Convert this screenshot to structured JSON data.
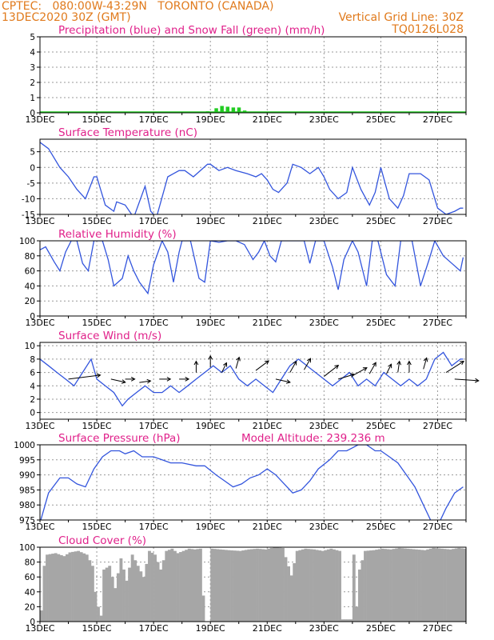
{
  "header": {
    "line1": "CPTEC:   080:00W-43:29N   TORONTO (CANADA)",
    "line2": "13DEC2020 30Z (GMT)",
    "right1": "Vertical Grid Line: 30Z",
    "right2": "TQ0126L028"
  },
  "x_labels": [
    "13DEC",
    "15DEC",
    "17DEC",
    "19DEC",
    "21DEC",
    "23DEC",
    "25DEC",
    "27DEC"
  ],
  "colors": {
    "line": "#3355dd",
    "snow": "#22cc22",
    "cloud": "#a6a6a6",
    "header": "#e07a1c",
    "title": "#e0208a"
  },
  "chart_data": [
    {
      "type": "bar",
      "title": "Precipitation (blue) and Snow Fall (green) (mm/h)",
      "ylim": [
        0,
        5
      ],
      "yticks": [
        0,
        1,
        2,
        3,
        4,
        5
      ],
      "series": [
        {
          "name": "Precipitation",
          "x": [
            26.8
          ],
          "values": [
            0.1
          ]
        },
        {
          "name": "Snow Fall",
          "x": [
            13.1,
            13.4,
            14.2,
            15.2,
            17.4,
            18.9,
            19.2,
            19.4,
            19.6,
            19.8,
            20.0,
            20.2,
            20.4,
            20.8,
            21.2,
            21.8,
            22.3
          ],
          "values": [
            0.05,
            0.03,
            0.05,
            0.05,
            0.05,
            0.1,
            0.3,
            0.45,
            0.4,
            0.35,
            0.35,
            0.15,
            0.05,
            0.05,
            0.05,
            0.08,
            0.05
          ]
        }
      ]
    },
    {
      "type": "line",
      "title": "Surface Temperature (nC)",
      "ylim": [
        -15,
        9
      ],
      "yticks": [
        -15,
        -10,
        -5,
        0,
        5
      ],
      "x": [
        13.0,
        13.3,
        13.7,
        14.0,
        14.3,
        14.6,
        14.9,
        15.0,
        15.3,
        15.6,
        15.7,
        16.0,
        16.3,
        16.7,
        16.9,
        17.1,
        17.5,
        17.7,
        17.9,
        18.1,
        18.4,
        18.9,
        19.0,
        19.3,
        19.6,
        19.9,
        20.3,
        20.6,
        20.8,
        21.0,
        21.2,
        21.4,
        21.7,
        21.9,
        22.2,
        22.5,
        22.8,
        23.0,
        23.2,
        23.5,
        23.8,
        24.0,
        24.3,
        24.6,
        24.8,
        25.0,
        25.3,
        25.6,
        25.8,
        26.0,
        26.4,
        26.7,
        27.0,
        27.3,
        27.6,
        27.8,
        27.9
      ],
      "values": [
        8,
        6,
        0,
        -3,
        -7,
        -10,
        -3,
        -3,
        -12,
        -14,
        -11,
        -12,
        -16,
        -6,
        -14,
        -16,
        -3,
        -2,
        -1,
        -1,
        -3,
        1,
        1,
        -1,
        0,
        -1,
        -2,
        -3,
        -2,
        -4,
        -7,
        -8,
        -5,
        1,
        0,
        -2,
        0,
        -3,
        -7,
        -10,
        -8,
        0,
        -7,
        -12,
        -8,
        0,
        -10,
        -13,
        -9,
        -2,
        -2,
        -4,
        -13,
        -15,
        -14,
        -13,
        -13
      ]
    },
    {
      "type": "line",
      "title": "Relative Humidity (%)",
      "ylim": [
        0,
        100
      ],
      "yticks": [
        0,
        20,
        40,
        60,
        80,
        100
      ],
      "x": [
        13.0,
        13.2,
        13.5,
        13.7,
        13.9,
        14.1,
        14.3,
        14.5,
        14.7,
        14.9,
        15.0,
        15.2,
        15.4,
        15.6,
        15.9,
        16.1,
        16.3,
        16.5,
        16.8,
        17.0,
        17.3,
        17.5,
        17.7,
        17.9,
        18.0,
        18.3,
        18.6,
        18.8,
        19.0,
        19.3,
        19.6,
        19.9,
        20.2,
        20.5,
        20.7,
        20.9,
        21.1,
        21.3,
        21.5,
        21.8,
        22.0,
        22.3,
        22.5,
        22.7,
        23.0,
        23.3,
        23.5,
        23.7,
        24.0,
        24.2,
        24.5,
        24.7,
        24.9,
        25.2,
        25.5,
        25.7,
        25.9,
        26.1,
        26.4,
        26.7,
        26.9,
        27.2,
        27.5,
        27.8,
        27.9
      ],
      "values": [
        88,
        92,
        72,
        60,
        85,
        100,
        100,
        70,
        60,
        100,
        100,
        100,
        75,
        40,
        50,
        80,
        60,
        45,
        30,
        68,
        100,
        85,
        45,
        85,
        100,
        100,
        50,
        45,
        100,
        98,
        100,
        100,
        95,
        75,
        85,
        100,
        80,
        72,
        100,
        100,
        100,
        100,
        70,
        100,
        100,
        65,
        35,
        75,
        100,
        85,
        40,
        100,
        100,
        55,
        40,
        100,
        100,
        100,
        40,
        75,
        100,
        80,
        70,
        60,
        78
      ]
    },
    {
      "type": "line",
      "title": "Surface Wind (m/s)",
      "ylim": [
        -1,
        10.5
      ],
      "yticks": [
        0,
        2,
        4,
        6,
        8,
        10
      ],
      "x": [
        13.0,
        13.3,
        13.6,
        13.9,
        14.2,
        14.5,
        14.8,
        15.0,
        15.3,
        15.6,
        15.9,
        16.1,
        16.4,
        16.7,
        17.0,
        17.3,
        17.6,
        17.9,
        18.2,
        18.5,
        18.8,
        19.1,
        19.4,
        19.7,
        20.0,
        20.3,
        20.6,
        20.9,
        21.2,
        21.5,
        21.8,
        22.1,
        22.4,
        22.7,
        23.0,
        23.3,
        23.6,
        23.9,
        24.2,
        24.5,
        24.8,
        25.1,
        25.4,
        25.7,
        26.0,
        26.3,
        26.6,
        26.9,
        27.2,
        27.5,
        27.8,
        27.9
      ],
      "values": [
        8,
        7,
        6,
        5,
        4,
        6,
        8,
        5,
        4,
        3,
        1,
        2,
        3,
        4,
        3,
        3,
        4,
        3,
        4,
        5,
        6,
        7,
        6,
        7,
        5,
        4,
        5,
        4,
        3,
        5,
        7,
        8,
        7,
        6,
        5,
        4,
        5,
        6,
        4,
        5,
        4,
        6,
        5,
        4,
        5,
        4,
        5,
        8,
        9,
        7,
        8,
        8
      ]
    },
    {
      "type": "line",
      "title": "Surface Pressure (hPa)",
      "annotation": "Model Altitude: 239.236  m",
      "ylim": [
        975,
        1000
      ],
      "yticks": [
        975,
        980,
        985,
        990,
        995,
        1000
      ],
      "x": [
        13.0,
        13.3,
        13.7,
        14.0,
        14.3,
        14.6,
        14.9,
        15.2,
        15.5,
        15.8,
        16.0,
        16.3,
        16.6,
        17.0,
        17.3,
        17.6,
        18.0,
        18.5,
        18.8,
        19.2,
        19.5,
        19.8,
        20.1,
        20.4,
        20.7,
        21.0,
        21.3,
        21.6,
        21.9,
        22.2,
        22.5,
        22.8,
        23.2,
        23.5,
        23.8,
        24.0,
        24.2,
        24.5,
        24.8,
        25.0,
        25.3,
        25.6,
        25.9,
        26.2,
        26.5,
        26.8,
        27.0,
        27.3,
        27.6,
        27.9
      ],
      "values": [
        974,
        984,
        989,
        989,
        987,
        986,
        992,
        996,
        998,
        998,
        997,
        998,
        996,
        996,
        995,
        994,
        994,
        993,
        993,
        990,
        988,
        986,
        987,
        989,
        990,
        992,
        990,
        987,
        984,
        985,
        988,
        992,
        995,
        998,
        998,
        999,
        1000,
        1000,
        998,
        998,
        996,
        994,
        990,
        986,
        980,
        974,
        973,
        979,
        984,
        986
      ]
    },
    {
      "type": "bar",
      "title": "Cloud Cover (%)",
      "ylim": [
        0,
        100
      ],
      "yticks": [
        0,
        20,
        40,
        60,
        80,
        100
      ],
      "x": [
        13.0,
        13.1,
        13.2,
        13.5,
        13.8,
        14.0,
        14.3,
        14.6,
        14.8,
        14.9,
        15.0,
        15.1,
        15.2,
        15.4,
        15.6,
        15.8,
        16.0,
        16.2,
        16.4,
        16.6,
        16.8,
        17.0,
        17.2,
        17.4,
        17.6,
        17.8,
        18.0,
        18.2,
        18.4,
        18.6,
        18.7,
        18.8,
        18.9,
        19.0,
        19.3,
        19.6,
        20.0,
        20.3,
        20.6,
        20.9,
        21.2,
        21.5,
        21.8,
        22.0,
        22.3,
        22.6,
        22.9,
        23.2,
        23.5,
        23.6,
        23.7,
        23.8,
        23.9,
        24.0,
        24.1,
        24.2,
        24.4,
        24.7,
        25.0,
        25.3,
        25.6,
        25.9,
        26.2,
        26.5,
        26.8,
        27.1,
        27.4,
        27.7,
        27.9
      ],
      "values": [
        15,
        75,
        90,
        92,
        88,
        93,
        95,
        90,
        75,
        40,
        20,
        8,
        70,
        75,
        45,
        85,
        55,
        90,
        75,
        60,
        95,
        90,
        70,
        95,
        98,
        92,
        95,
        98,
        97,
        98,
        35,
        0,
        0,
        98,
        97,
        96,
        95,
        97,
        98,
        97,
        100,
        99,
        62,
        95,
        98,
        97,
        95,
        98,
        95,
        3,
        3,
        3,
        3,
        90,
        20,
        70,
        95,
        96,
        98,
        97,
        99,
        98,
        97,
        96,
        99,
        98,
        97,
        99,
        98
      ]
    }
  ]
}
